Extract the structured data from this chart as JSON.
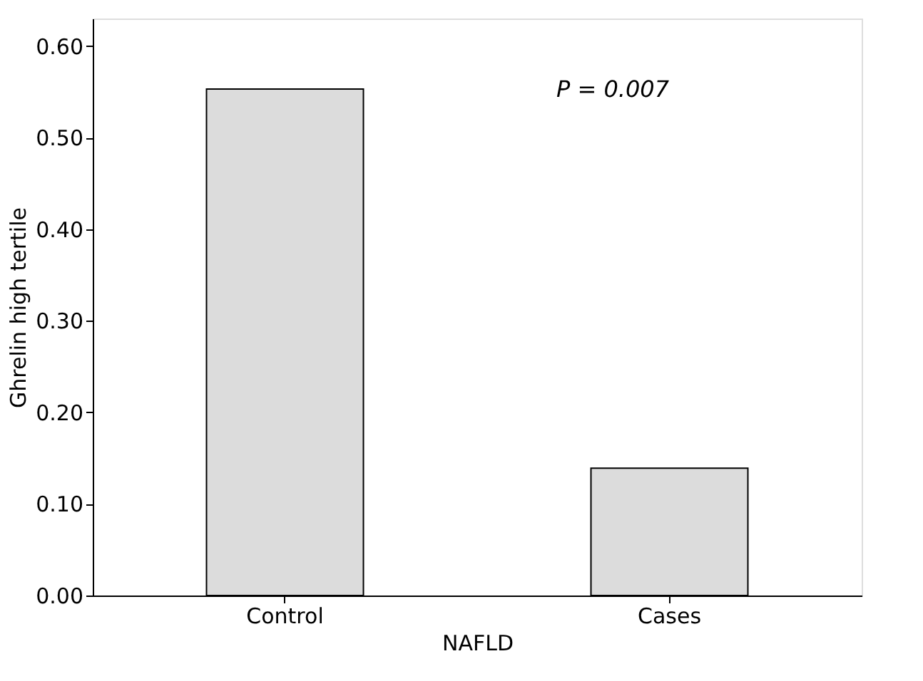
{
  "chart_data": {
    "type": "bar",
    "xlabel": "NAFLD",
    "ylabel": "Ghrelin high tertile",
    "categories": [
      "Control",
      "Cases"
    ],
    "values": [
      0.553,
      0.139
    ],
    "color": "#dcdcdc",
    "ylim": [
      0,
      0.63
    ],
    "yticks": [
      {
        "value": 0,
        "label": "0.00"
      },
      {
        "value": 0.1,
        "label": "0.10"
      },
      {
        "value": 0.2,
        "label": "0.20"
      },
      {
        "value": 0.3,
        "label": "0.30"
      },
      {
        "value": 0.4,
        "label": "0.40"
      },
      {
        "value": 0.5,
        "label": "0.50"
      },
      {
        "value": 0.6,
        "label": "0.60"
      }
    ],
    "grid": false,
    "annotations": [
      "P = 0.007"
    ]
  }
}
